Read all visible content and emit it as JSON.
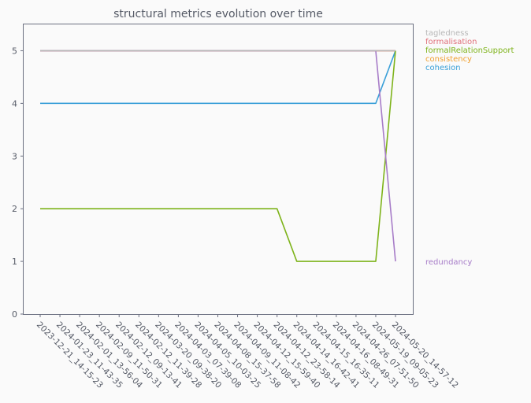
{
  "chart_data": {
    "type": "line",
    "title": "structural metrics evolution over time",
    "xlabel": "",
    "ylabel": "",
    "ylim": [
      0,
      5.5
    ],
    "yticks": [
      0,
      1,
      2,
      3,
      4,
      5
    ],
    "grid": false,
    "legend_placement": "right, at line end values",
    "x": [
      "2023-12-21_14-15-23",
      "2024-01-23_11-43-35",
      "2024-02-01_13-56-04",
      "2024-02-09_11-50-31",
      "2024-02-12_09-13-41",
      "2024-02-12_11-39-28",
      "2024-03-20_09-38-20",
      "2024-04-03_07-39-08",
      "2024-04-05_10-03-25",
      "2024-04-08_15-37-58",
      "2024-04-09_11-08-42",
      "2024-04-12_15-59-40",
      "2024-04-12_23-58-14",
      "2024-04-14_16-42-41",
      "2024-04-15_16-35-11",
      "2024-04-16_08-49-31",
      "2024-04-26_07-51-50",
      "2024-05-19_09-05-23",
      "2024-05-20_14-57-12"
    ],
    "series": [
      {
        "name": "tagledness",
        "color": "#b8b8b8",
        "values": [
          5,
          5,
          5,
          5,
          5,
          5,
          5,
          5,
          5,
          5,
          5,
          5,
          5,
          5,
          5,
          5,
          5,
          5,
          5
        ]
      },
      {
        "name": "formalisation",
        "color": "#e0707a",
        "values": [
          5,
          5,
          5,
          5,
          5,
          5,
          5,
          5,
          5,
          5,
          5,
          5,
          5,
          5,
          5,
          5,
          5,
          5,
          5
        ]
      },
      {
        "name": "formalRelationSupport",
        "color": "#7eb31a",
        "values": [
          2,
          2,
          2,
          2,
          2,
          2,
          2,
          2,
          2,
          2,
          2,
          2,
          2,
          1,
          1,
          1,
          1,
          1,
          5
        ]
      },
      {
        "name": "consistency",
        "color": "#f0a030",
        "values": [
          5,
          5,
          5,
          5,
          5,
          5,
          5,
          5,
          5,
          5,
          5,
          5,
          5,
          5,
          5,
          5,
          5,
          5,
          5
        ]
      },
      {
        "name": "cohesion",
        "color": "#3aa0d8",
        "values": [
          4,
          4,
          4,
          4,
          4,
          4,
          4,
          4,
          4,
          4,
          4,
          4,
          4,
          4,
          4,
          4,
          4,
          4,
          5
        ]
      },
      {
        "name": "redundancy",
        "color": "#a77cc8",
        "values": [
          5,
          5,
          5,
          5,
          5,
          5,
          5,
          5,
          5,
          5,
          5,
          5,
          5,
          5,
          5,
          5,
          5,
          5,
          1
        ]
      }
    ]
  }
}
